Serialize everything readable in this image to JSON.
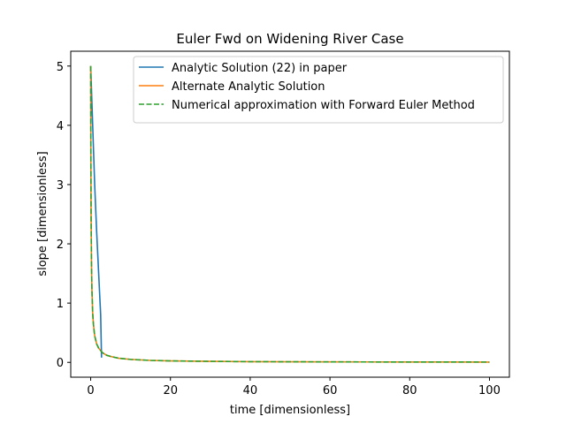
{
  "chart_data": {
    "type": "line",
    "title": "Euler Fwd on Widening River Case",
    "xlabel": "time [dimensionless]",
    "ylabel": "slope [dimensionless]",
    "xlim": [
      -5,
      105
    ],
    "ylim": [
      -0.25,
      5.25
    ],
    "xticks": [
      0,
      20,
      40,
      60,
      80,
      100
    ],
    "yticks": [
      0,
      1,
      2,
      3,
      4,
      5
    ],
    "grid": false,
    "legend_position": "top-right",
    "series": [
      {
        "name": "Analytic Solution (22) in paper",
        "color": "#1f77b4",
        "linestyle": "solid",
        "x": [
          0,
          0.5,
          1.0,
          1.5,
          2.0,
          2.5,
          2.72
        ],
        "y": [
          5.0,
          4.0,
          3.0,
          2.2,
          1.5,
          0.8,
          0.08
        ]
      },
      {
        "name": "Alternate Analytic Solution",
        "color": "#ff7f0e",
        "linestyle": "solid",
        "x": [
          0,
          0.05,
          0.1,
          0.2,
          0.3,
          0.5,
          0.7,
          1.0,
          1.5,
          2.0,
          3.0,
          4.0,
          5.0,
          7.0,
          10.0,
          15.0,
          20.0,
          30.0,
          40.0,
          50.0,
          60.0,
          70.0,
          80.0,
          90.0,
          100.0
        ],
        "y": [
          5.0,
          3.33,
          2.5,
          1.67,
          1.25,
          0.83,
          0.63,
          0.45,
          0.31,
          0.24,
          0.16,
          0.12,
          0.1,
          0.07,
          0.05,
          0.033,
          0.025,
          0.017,
          0.012,
          0.01,
          0.008,
          0.007,
          0.006,
          0.006,
          0.005
        ]
      },
      {
        "name": "Numerical approximation with Forward Euler Method",
        "color": "#2ca02c",
        "linestyle": "dashed",
        "x": [
          0,
          0.05,
          0.1,
          0.2,
          0.3,
          0.5,
          0.7,
          1.0,
          1.5,
          2.0,
          3.0,
          4.0,
          5.0,
          7.0,
          10.0,
          15.0,
          20.0,
          30.0,
          40.0,
          50.0,
          60.0,
          70.0,
          80.0,
          90.0,
          100.0
        ],
        "y": [
          5.0,
          3.33,
          2.5,
          1.67,
          1.25,
          0.83,
          0.63,
          0.45,
          0.31,
          0.24,
          0.16,
          0.12,
          0.1,
          0.07,
          0.05,
          0.033,
          0.025,
          0.017,
          0.012,
          0.01,
          0.008,
          0.007,
          0.006,
          0.006,
          0.005
        ]
      }
    ]
  }
}
